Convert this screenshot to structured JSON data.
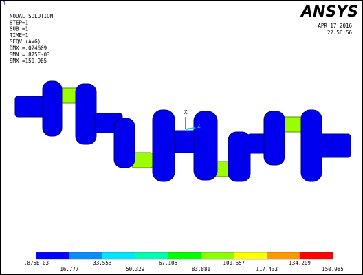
{
  "window_number": "1",
  "info": [
    "NODAL SOLUTION",
    "STEP=1",
    "SUB =1",
    "TIME=1",
    "SEQV     (AVG)",
    "DMX =.024609",
    "SMN =.875E-03",
    "SMX =150.985"
  ],
  "logo": "ANSYS",
  "date": "APR 17 2016",
  "time": "22:56:56",
  "triad": {
    "x_label": "X",
    "z_label": "Z"
  },
  "legend": {
    "colors": [
      "#0000ff",
      "#0a8cff",
      "#00e5ff",
      "#00ffb0",
      "#00ff00",
      "#8cff00",
      "#ffff00",
      "#ff9900",
      "#ff0000"
    ],
    "labels": [
      ".875E-03",
      "16.777",
      "33.553",
      "50.329",
      "67.105",
      "83.881",
      "100.657",
      "117.433",
      "134.209",
      "150.985"
    ]
  }
}
